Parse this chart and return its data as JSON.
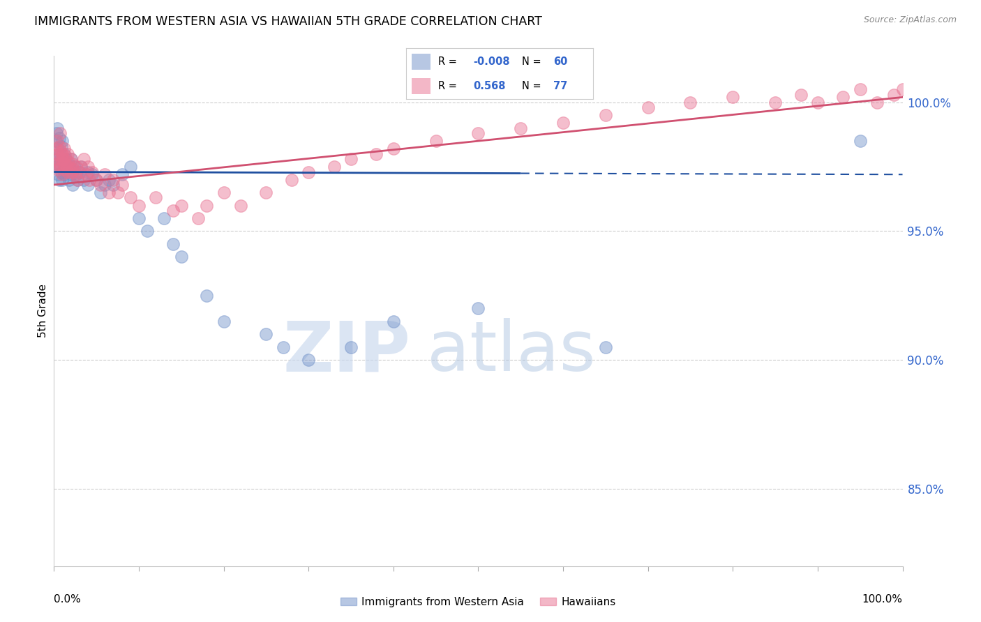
{
  "title": "IMMIGRANTS FROM WESTERN ASIA VS HAWAIIAN 5TH GRADE CORRELATION CHART",
  "source": "Source: ZipAtlas.com",
  "ylabel": "5th Grade",
  "right_yticks": [
    85.0,
    90.0,
    95.0,
    100.0
  ],
  "xlim": [
    0.0,
    100.0
  ],
  "ylim": [
    82.0,
    101.8
  ],
  "blue_R": -0.008,
  "blue_N": 60,
  "pink_R": 0.568,
  "pink_N": 77,
  "blue_color": "#7090c8",
  "pink_color": "#e87090",
  "blue_line_color": "#2050a0",
  "pink_line_color": "#d05070",
  "legend_label_blue": "Immigrants from Western Asia",
  "legend_label_pink": "Hawaiians",
  "watermark_zip": "ZIP",
  "watermark_atlas": "atlas",
  "background_color": "#ffffff",
  "grid_color": "#cccccc",
  "blue_x": [
    0.2,
    0.3,
    0.3,
    0.4,
    0.4,
    0.5,
    0.5,
    0.6,
    0.6,
    0.7,
    0.7,
    0.8,
    0.9,
    0.9,
    1.0,
    1.0,
    1.1,
    1.2,
    1.2,
    1.3,
    1.4,
    1.5,
    1.6,
    1.7,
    1.8,
    2.0,
    2.0,
    2.1,
    2.2,
    2.4,
    2.6,
    2.8,
    3.0,
    3.2,
    3.5,
    4.0,
    4.0,
    4.5,
    5.0,
    5.5,
    6.0,
    6.5,
    7.0,
    8.0,
    9.0,
    10.0,
    11.0,
    13.0,
    14.0,
    15.0,
    18.0,
    20.0,
    25.0,
    27.0,
    30.0,
    35.0,
    40.0,
    50.0,
    65.0,
    95.0
  ],
  "blue_y": [
    98.5,
    98.8,
    97.5,
    99.0,
    97.8,
    98.2,
    97.2,
    98.6,
    97.0,
    98.0,
    97.5,
    97.8,
    98.3,
    97.3,
    98.5,
    97.0,
    97.6,
    97.2,
    98.0,
    97.4,
    97.8,
    97.5,
    97.3,
    97.6,
    97.0,
    97.4,
    97.8,
    97.2,
    96.8,
    97.5,
    97.2,
    97.0,
    97.3,
    97.5,
    97.0,
    97.3,
    96.8,
    97.2,
    97.0,
    96.5,
    96.8,
    97.0,
    96.8,
    97.2,
    97.5,
    95.5,
    95.0,
    95.5,
    94.5,
    94.0,
    92.5,
    91.5,
    91.0,
    90.5,
    90.0,
    90.5,
    91.5,
    92.0,
    90.5,
    98.5
  ],
  "pink_x": [
    0.2,
    0.3,
    0.4,
    0.4,
    0.5,
    0.5,
    0.6,
    0.7,
    0.7,
    0.8,
    0.8,
    0.9,
    1.0,
    1.0,
    1.1,
    1.2,
    1.2,
    1.3,
    1.4,
    1.5,
    1.6,
    1.6,
    1.7,
    1.8,
    2.0,
    2.0,
    2.2,
    2.3,
    2.5,
    2.6,
    2.8,
    3.0,
    3.2,
    3.5,
    3.8,
    4.0,
    4.2,
    4.5,
    5.0,
    5.5,
    6.0,
    6.5,
    7.0,
    7.5,
    8.0,
    9.0,
    10.0,
    12.0,
    14.0,
    15.0,
    17.0,
    18.0,
    20.0,
    22.0,
    25.0,
    28.0,
    30.0,
    33.0,
    35.0,
    38.0,
    40.0,
    45.0,
    50.0,
    55.0,
    60.0,
    65.0,
    70.0,
    75.0,
    80.0,
    85.0,
    88.0,
    90.0,
    93.0,
    95.0,
    97.0,
    99.0,
    100.0
  ],
  "pink_y": [
    98.2,
    97.6,
    98.5,
    97.8,
    98.0,
    97.4,
    98.3,
    97.6,
    98.8,
    97.5,
    98.1,
    97.8,
    98.0,
    97.2,
    97.8,
    98.2,
    97.4,
    97.6,
    97.9,
    97.5,
    98.0,
    97.3,
    97.7,
    97.5,
    97.8,
    97.3,
    97.6,
    97.4,
    97.2,
    97.5,
    97.0,
    97.3,
    97.5,
    97.8,
    97.2,
    97.5,
    97.0,
    97.3,
    97.0,
    96.8,
    97.2,
    96.5,
    97.0,
    96.5,
    96.8,
    96.3,
    96.0,
    96.3,
    95.8,
    96.0,
    95.5,
    96.0,
    96.5,
    96.0,
    96.5,
    97.0,
    97.3,
    97.5,
    97.8,
    98.0,
    98.2,
    98.5,
    98.8,
    99.0,
    99.2,
    99.5,
    99.8,
    100.0,
    100.2,
    100.0,
    100.3,
    100.0,
    100.2,
    100.5,
    100.0,
    100.3,
    100.5
  ],
  "blue_trendline_x": [
    0,
    100
  ],
  "blue_trendline_y": [
    97.3,
    97.2
  ],
  "blue_dashed_start": 55,
  "pink_trendline_x": [
    0,
    100
  ],
  "pink_trendline_y": [
    96.8,
    100.2
  ]
}
